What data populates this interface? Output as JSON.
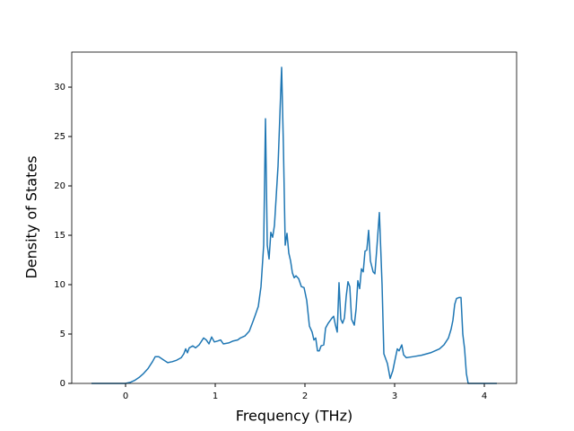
{
  "chart_data": {
    "type": "line",
    "xlabel": "Frequency (THz)",
    "ylabel": "Density of States",
    "xlim": [
      -0.6,
      4.36
    ],
    "ylim": [
      0,
      33.55
    ],
    "xticks": [
      0,
      1,
      2,
      3,
      4
    ],
    "yticks": [
      0,
      5,
      10,
      15,
      20,
      25,
      30
    ],
    "grid": false,
    "x": [
      -0.38,
      0.0,
      0.05,
      0.1,
      0.15,
      0.2,
      0.25,
      0.3,
      0.33,
      0.37,
      0.42,
      0.47,
      0.52,
      0.57,
      0.62,
      0.65,
      0.67,
      0.69,
      0.71,
      0.75,
      0.78,
      0.82,
      0.87,
      0.9,
      0.93,
      0.96,
      0.99,
      1.03,
      1.06,
      1.09,
      1.15,
      1.2,
      1.25,
      1.28,
      1.33,
      1.38,
      1.43,
      1.48,
      1.51,
      1.54,
      1.56,
      1.58,
      1.6,
      1.62,
      1.64,
      1.66,
      1.7,
      1.72,
      1.74,
      1.76,
      1.78,
      1.8,
      1.82,
      1.84,
      1.86,
      1.88,
      1.9,
      1.93,
      1.96,
      1.99,
      2.02,
      2.05,
      2.08,
      2.1,
      2.12,
      2.14,
      2.16,
      2.18,
      2.21,
      2.23,
      2.26,
      2.3,
      2.32,
      2.34,
      2.36,
      2.38,
      2.4,
      2.42,
      2.44,
      2.46,
      2.48,
      2.5,
      2.52,
      2.55,
      2.57,
      2.59,
      2.61,
      2.63,
      2.65,
      2.67,
      2.69,
      2.71,
      2.73,
      2.76,
      2.78,
      2.8,
      2.83,
      2.86,
      2.88,
      2.92,
      2.95,
      2.98,
      3.0,
      3.03,
      3.05,
      3.08,
      3.1,
      3.13,
      3.2,
      3.3,
      3.4,
      3.5,
      3.55,
      3.6,
      3.63,
      3.65,
      3.67,
      3.69,
      3.72,
      3.74,
      3.76,
      3.78,
      3.8,
      3.82,
      4.14
    ],
    "series": [
      {
        "color": "#1f77b4",
        "values": [
          0,
          0,
          0.1,
          0.3,
          0.6,
          1.0,
          1.5,
          2.2,
          2.7,
          2.7,
          2.4,
          2.1,
          2.2,
          2.35,
          2.6,
          3.0,
          3.5,
          3.1,
          3.6,
          3.8,
          3.6,
          3.9,
          4.6,
          4.4,
          4.0,
          4.7,
          4.2,
          4.3,
          4.4,
          4.0,
          4.1,
          4.3,
          4.4,
          4.6,
          4.8,
          5.3,
          6.5,
          7.8,
          9.8,
          14,
          26.8,
          14,
          12.6,
          15.3,
          14.8,
          16,
          22,
          27,
          32,
          24,
          14,
          15.2,
          13.2,
          12.4,
          11.2,
          10.7,
          10.9,
          10.6,
          9.8,
          9.7,
          8.4,
          5.8,
          5.2,
          4.4,
          4.6,
          3.3,
          3.3,
          3.8,
          3.9,
          5.6,
          6.1,
          6.6,
          6.8,
          5.9,
          5.2,
          10.2,
          6.5,
          6.1,
          6.6,
          8.8,
          10.3,
          9.8,
          6.5,
          5.9,
          7.5,
          10.4,
          9.6,
          11.6,
          11.3,
          13.4,
          13.5,
          15.5,
          12.4,
          11.3,
          11.1,
          13.5,
          17.3,
          10,
          3.0,
          2.0,
          0.5,
          1.3,
          2.2,
          3.5,
          3.3,
          3.9,
          2.9,
          2.6,
          2.7,
          2.85,
          3.1,
          3.5,
          3.9,
          4.6,
          5.5,
          6.4,
          8.0,
          8.6,
          8.7,
          8.7,
          5,
          3.5,
          1,
          0,
          0
        ]
      }
    ]
  }
}
